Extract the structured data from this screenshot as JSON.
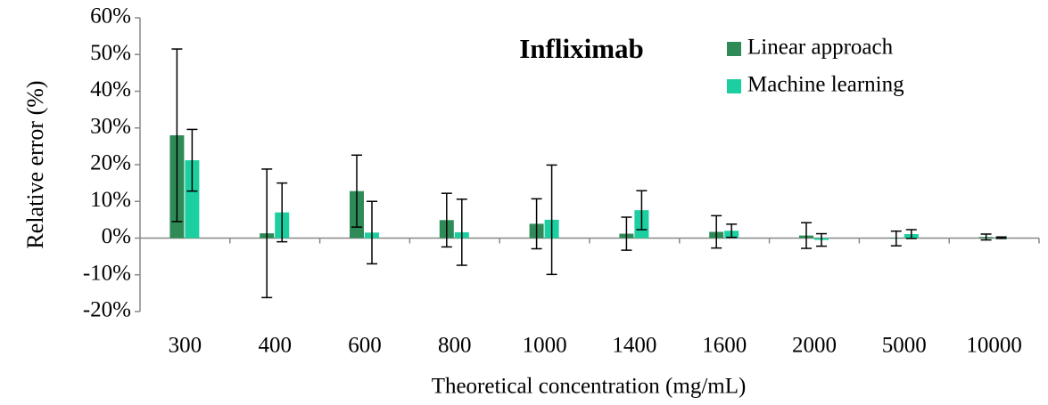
{
  "chart_data": {
    "type": "bar",
    "title": "Infliximab",
    "x_label": "Theoretical concentration (mg/mL)",
    "y_label": "Relative error (%)",
    "categories": [
      "300",
      "400",
      "600",
      "800",
      "1000",
      "1400",
      "1600",
      "2000",
      "5000",
      "10000"
    ],
    "series": [
      {
        "name": "Linear approach",
        "color": "#2e8b57",
        "values": [
          28,
          1.3,
          12.8,
          4.9,
          3.9,
          1.2,
          1.7,
          0.7,
          -0.1,
          0.3
        ],
        "errors": [
          23.5,
          17.5,
          9.8,
          7.3,
          6.8,
          4.5,
          4.4,
          3.5,
          2,
          0.8
        ]
      },
      {
        "name": "Machine learning",
        "color": "#1ccfa0",
        "values": [
          21.2,
          7,
          1.5,
          1.6,
          5,
          7.6,
          2,
          -0.5,
          1.1,
          0.1
        ],
        "errors": [
          8.4,
          8,
          8.5,
          9,
          14.9,
          5.3,
          1.8,
          1.7,
          1.2,
          0.2
        ]
      }
    ],
    "ylim": [
      -20,
      60
    ],
    "yticks": [
      {
        "value": -20,
        "label": "-20%"
      },
      {
        "value": -10,
        "label": "-10%"
      },
      {
        "value": 0,
        "label": "0%"
      },
      {
        "value": 10,
        "label": "10%"
      },
      {
        "value": 20,
        "label": "20%"
      },
      {
        "value": 30,
        "label": "30%"
      },
      {
        "value": 40,
        "label": "40%"
      },
      {
        "value": 50,
        "label": "50%"
      },
      {
        "value": 60,
        "label": "60%"
      }
    ]
  }
}
